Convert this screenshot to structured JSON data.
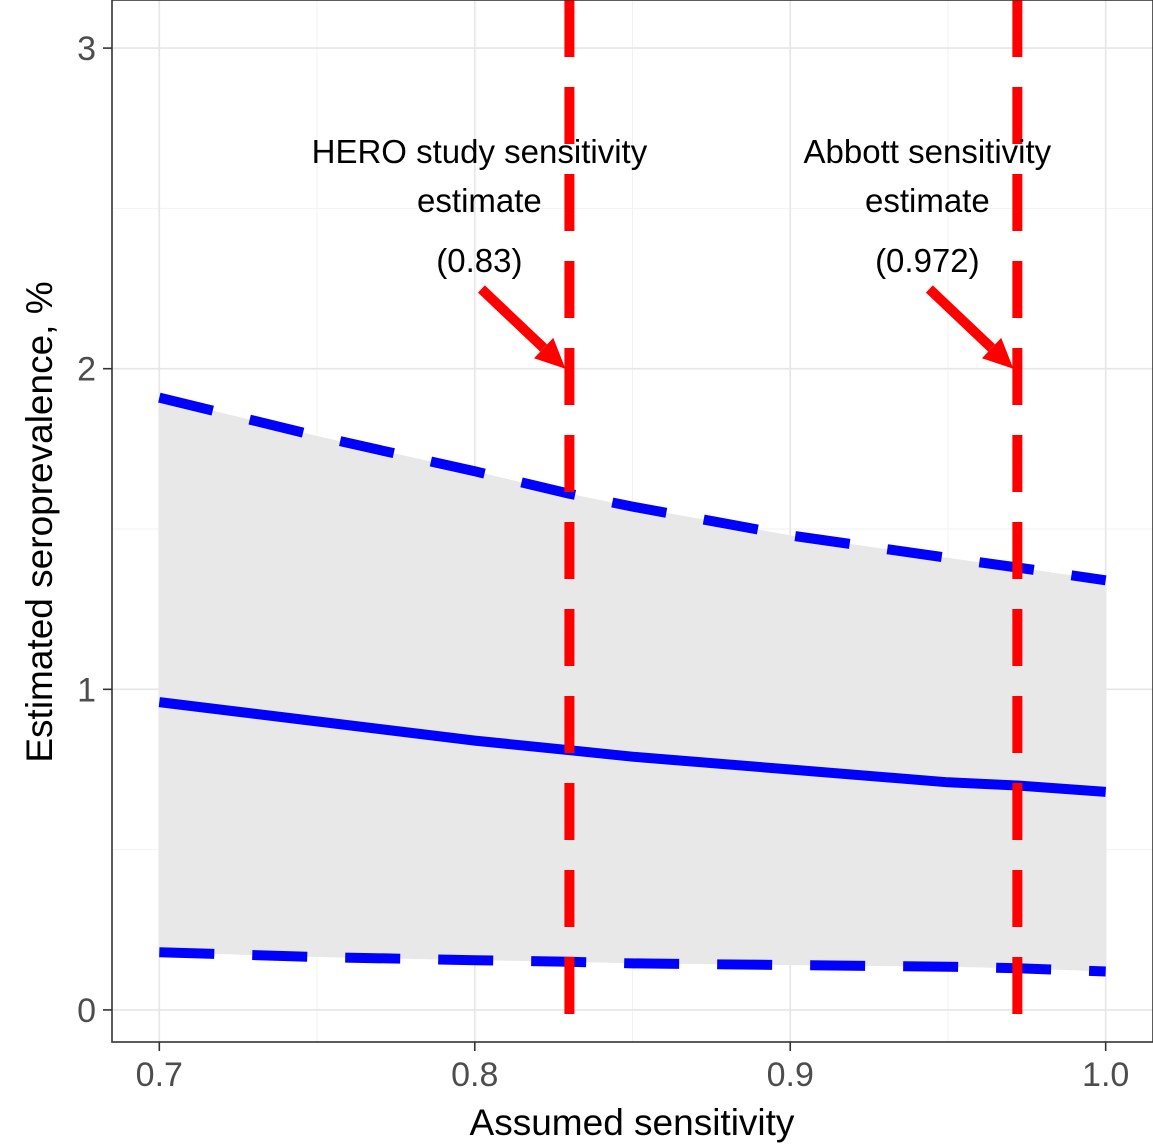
{
  "chart_data": {
    "type": "line",
    "title": "",
    "xlabel": "Assumed sensitivity",
    "ylabel": "Estimated seroprevalence, %",
    "xlim": [
      0.685,
      1.015
    ],
    "ylim": [
      -0.1,
      3.15
    ],
    "x_ticks": [
      "0.7",
      "0.8",
      "0.9",
      "1.0"
    ],
    "y_ticks": [
      "0",
      "1",
      "2",
      "3"
    ],
    "grid": true,
    "legend": "none",
    "series": [
      {
        "role": "estimate",
        "style": "solid",
        "color": "#0000ff",
        "x": [
          0.7,
          0.75,
          0.8,
          0.83,
          0.85,
          0.9,
          0.95,
          0.972,
          1.0
        ],
        "y": [
          0.96,
          0.9,
          0.84,
          0.81,
          0.79,
          0.75,
          0.71,
          0.7,
          0.68
        ]
      },
      {
        "role": "upper-bound",
        "style": "dashed",
        "color": "#0000ff",
        "x": [
          0.7,
          0.75,
          0.8,
          0.83,
          0.85,
          0.9,
          0.95,
          0.972,
          1.0
        ],
        "y": [
          1.91,
          1.79,
          1.68,
          1.61,
          1.57,
          1.48,
          1.41,
          1.38,
          1.34
        ]
      },
      {
        "role": "lower-bound",
        "style": "dashed",
        "color": "#0000ff",
        "x": [
          0.7,
          0.75,
          0.8,
          0.83,
          0.85,
          0.9,
          0.95,
          0.972,
          1.0
        ],
        "y": [
          0.18,
          0.165,
          0.155,
          0.15,
          0.145,
          0.14,
          0.135,
          0.13,
          0.12
        ]
      }
    ],
    "ribbon_color": "#e8e8e8",
    "reference_lines": [
      {
        "x": 0.83,
        "color": "#ff0000",
        "style": "dashed",
        "label": [
          "HERO study sensitivity",
          "estimate",
          "(0.83)"
        ],
        "arrow_tip_y": 2.0
      },
      {
        "x": 0.972,
        "color": "#ff0000",
        "style": "dashed",
        "label": [
          "Abbott sensitivity",
          "estimate",
          "(0.972)"
        ],
        "arrow_tip_y": 2.0
      }
    ]
  }
}
